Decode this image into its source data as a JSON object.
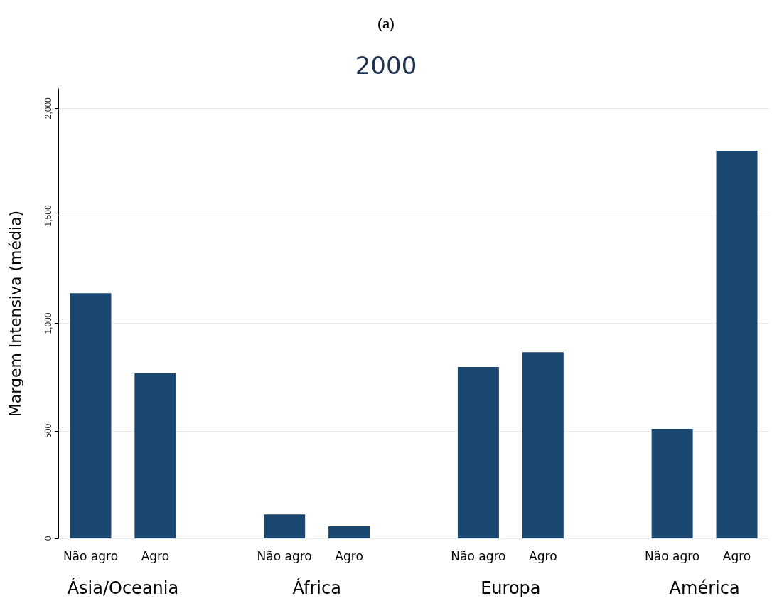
{
  "chart_data": {
    "type": "bar",
    "title": "2000",
    "subtitle": "(a)",
    "ylabel": "Margem Intensiva (média)",
    "categories": [
      "Não agro",
      "Agro",
      null,
      "Não agro",
      "Agro",
      null,
      "Não agro",
      "Agro",
      null,
      "Não agro",
      "Agro"
    ],
    "values": [
      1140,
      767,
      null,
      112,
      56,
      null,
      797,
      866,
      null,
      509,
      1802
    ],
    "color": "#1a476f",
    "ylim": [
      0,
      2090
    ],
    "yticks": [
      0,
      500,
      {
        "value": 1000,
        "label": "1,000"
      },
      {
        "value": 1500,
        "label": "1,500"
      },
      {
        "value": 2000,
        "label": "2,000"
      }
    ],
    "grid": "y",
    "annotations": [
      "Ásia/Oceania",
      "África",
      "Europa",
      "América"
    ]
  }
}
